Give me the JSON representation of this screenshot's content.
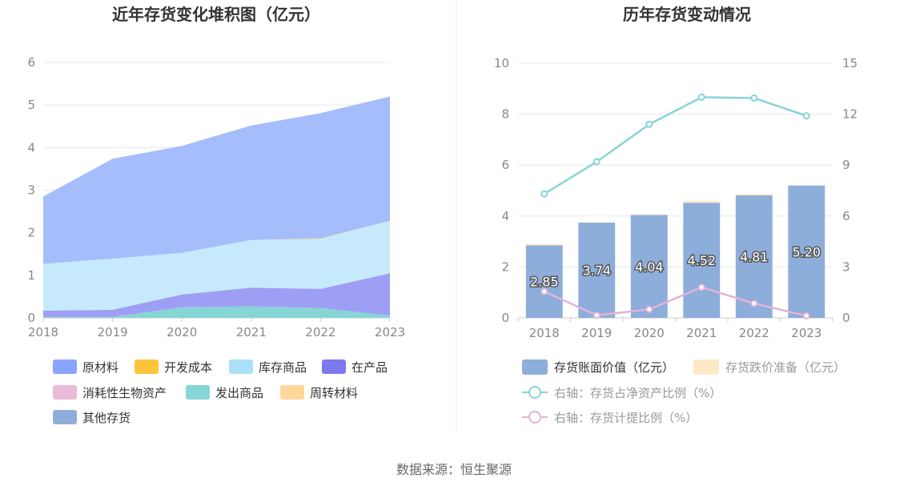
{
  "source": "数据来源：恒生聚源",
  "chart_data": [
    {
      "type": "area",
      "title": "近年存货变化堆积图（亿元）",
      "x": [
        "2018",
        "2019",
        "2020",
        "2021",
        "2022",
        "2023"
      ],
      "ylim": [
        0,
        6
      ],
      "yticks": [
        "0",
        "1",
        "2",
        "3",
        "4",
        "5",
        "6"
      ],
      "grid": true,
      "legend_position": "bottom",
      "stacked": true,
      "series": [
        {
          "name": "发出商品",
          "color": "#86d6d6",
          "values": [
            0.02,
            0.02,
            0.25,
            0.27,
            0.23,
            0.05
          ]
        },
        {
          "name": "在产品",
          "color": "#9f9ef5",
          "values": [
            0.15,
            0.17,
            0.3,
            0.44,
            0.45,
            1.0
          ]
        },
        {
          "name": "库存商品",
          "color": "#c6eafb",
          "values": [
            1.1,
            1.2,
            0.98,
            1.12,
            1.18,
            1.23
          ]
        },
        {
          "name": "开发成本",
          "color": "#fbc43a",
          "values": [
            0,
            0,
            0,
            0,
            0.01,
            0
          ]
        },
        {
          "name": "周转材料",
          "color": "#fed89b",
          "values": [
            0,
            0,
            0,
            0,
            0,
            0
          ]
        },
        {
          "name": "消耗性生物资产",
          "color": "#e8bcd9",
          "values": [
            0,
            0,
            0,
            0,
            0,
            0
          ]
        },
        {
          "name": "其他存货",
          "color": "#8fafda",
          "values": [
            0,
            0,
            0,
            0,
            0,
            0
          ]
        },
        {
          "name": "原材料",
          "color": "#a6bdfc",
          "values": [
            1.58,
            2.35,
            2.51,
            2.69,
            2.94,
            2.92
          ]
        }
      ],
      "legend": [
        {
          "name": "原材料",
          "color": "#87a5f9"
        },
        {
          "name": "开发成本",
          "color": "#fbc43a"
        },
        {
          "name": "库存商品",
          "color": "#a9e1fa"
        },
        {
          "name": "在产品",
          "color": "#7c79ef"
        },
        {
          "name": "消耗性生物资产",
          "color": "#e8bcd9"
        },
        {
          "name": "发出商品",
          "color": "#86d6d6"
        },
        {
          "name": "周转材料",
          "color": "#fed89b"
        },
        {
          "name": "其他存货",
          "color": "#8fafda"
        }
      ]
    },
    {
      "type": "bar",
      "title": "历年存货变动情况",
      "categories": [
        "2018",
        "2019",
        "2020",
        "2021",
        "2022",
        "2023"
      ],
      "ylim": [
        0,
        10
      ],
      "yticks": [
        "0",
        "2",
        "4",
        "6",
        "8",
        "10"
      ],
      "y2lim": [
        0,
        15
      ],
      "y2ticks": [
        "0",
        "3",
        "6",
        "9",
        "12",
        "15"
      ],
      "grid": true,
      "legend_position": "bottom",
      "series": [
        {
          "name": "存货账面价值（亿元）",
          "type": "bar",
          "axis": "left",
          "color": "#8daddb",
          "values": [
            2.85,
            3.74,
            4.04,
            4.52,
            4.81,
            5.2
          ],
          "labels": [
            "2.85",
            "3.74",
            "4.04",
            "4.52",
            "4.81",
            "5.20"
          ]
        },
        {
          "name": "存货跌价准备（亿元）",
          "type": "bar",
          "axis": "left",
          "color": "#fde8c8",
          "values": [
            0.05,
            0.02,
            0.03,
            0.08,
            0.05,
            0.01
          ]
        },
        {
          "name": "右轴：存货占净资产比例（%）",
          "type": "line",
          "axis": "right",
          "color": "#88d4d8",
          "values": [
            7.3,
            9.2,
            11.4,
            13.0,
            12.95,
            11.9
          ]
        },
        {
          "name": "右轴：存货计提比例（%）",
          "type": "line",
          "axis": "right",
          "color": "#e1b3d6",
          "values": [
            1.55,
            0.15,
            0.5,
            1.8,
            0.85,
            0.12
          ]
        }
      ]
    }
  ]
}
